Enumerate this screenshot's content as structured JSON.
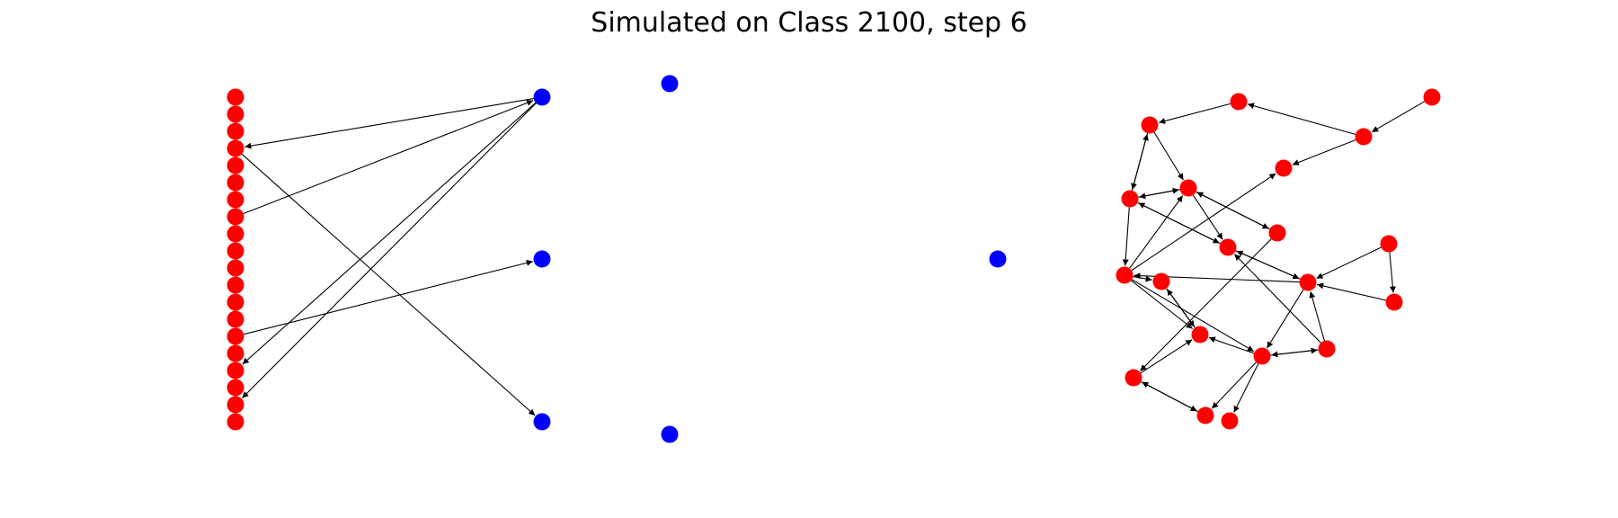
{
  "title": "Simulated on Class 2100, step 6",
  "colors": {
    "red": "#ff0000",
    "blue": "#0000ff",
    "edge": "#000000"
  },
  "graph": {
    "nodes": [
      {
        "id": "L0",
        "color": "red"
      },
      {
        "id": "L1",
        "color": "red"
      },
      {
        "id": "L2",
        "color": "red"
      },
      {
        "id": "L3",
        "color": "red"
      },
      {
        "id": "L4",
        "color": "red"
      },
      {
        "id": "L5",
        "color": "red"
      },
      {
        "id": "L6",
        "color": "red"
      },
      {
        "id": "L7",
        "color": "red"
      },
      {
        "id": "L8",
        "color": "red"
      },
      {
        "id": "L9",
        "color": "red"
      },
      {
        "id": "L10",
        "color": "red"
      },
      {
        "id": "L11",
        "color": "red"
      },
      {
        "id": "L12",
        "color": "red"
      },
      {
        "id": "L13",
        "color": "red"
      },
      {
        "id": "L14",
        "color": "red"
      },
      {
        "id": "L15",
        "color": "red"
      },
      {
        "id": "L16",
        "color": "red"
      },
      {
        "id": "L17",
        "color": "red"
      },
      {
        "id": "L18",
        "color": "red"
      },
      {
        "id": "L19",
        "color": "red"
      },
      {
        "id": "B0",
        "color": "blue"
      },
      {
        "id": "B1",
        "color": "blue"
      },
      {
        "id": "B2",
        "color": "blue"
      },
      {
        "id": "B3",
        "color": "blue"
      },
      {
        "id": "B4",
        "color": "blue"
      },
      {
        "id": "B5",
        "color": "blue"
      },
      {
        "id": "R0",
        "color": "red"
      },
      {
        "id": "R1",
        "color": "red"
      },
      {
        "id": "R2",
        "color": "red"
      },
      {
        "id": "R3",
        "color": "red"
      },
      {
        "id": "R4",
        "color": "red"
      },
      {
        "id": "R5",
        "color": "red"
      },
      {
        "id": "R6",
        "color": "red"
      },
      {
        "id": "R7",
        "color": "red"
      },
      {
        "id": "R8",
        "color": "red"
      },
      {
        "id": "R9",
        "color": "red"
      },
      {
        "id": "R10",
        "color": "red"
      },
      {
        "id": "R11",
        "color": "red"
      },
      {
        "id": "R12",
        "color": "red"
      },
      {
        "id": "R13",
        "color": "red"
      },
      {
        "id": "R14",
        "color": "red"
      },
      {
        "id": "R15",
        "color": "red"
      },
      {
        "id": "R16",
        "color": "red"
      },
      {
        "id": "R17",
        "color": "red"
      },
      {
        "id": "R18",
        "color": "red"
      },
      {
        "id": "R19",
        "color": "red"
      }
    ],
    "edges": [
      {
        "from": "B0",
        "to": "L3"
      },
      {
        "from": "L7",
        "to": "B0"
      },
      {
        "from": "B0",
        "to": "L16"
      },
      {
        "from": "B0",
        "to": "L18"
      },
      {
        "from": "L14",
        "to": "B1"
      },
      {
        "from": "L3",
        "to": "B2"
      },
      {
        "from": "R2",
        "to": "R0"
      },
      {
        "from": "R0",
        "to": "R4"
      },
      {
        "from": "R4",
        "to": "R0"
      },
      {
        "from": "R0",
        "to": "R5"
      },
      {
        "from": "R3",
        "to": "R6"
      },
      {
        "from": "R1",
        "to": "R3"
      },
      {
        "from": "R3",
        "to": "R2"
      },
      {
        "from": "R4",
        "to": "R5"
      },
      {
        "from": "R5",
        "to": "R4"
      },
      {
        "from": "R4",
        "to": "R8"
      },
      {
        "from": "R8",
        "to": "R4"
      },
      {
        "from": "R4",
        "to": "R9"
      },
      {
        "from": "R5",
        "to": "R8"
      },
      {
        "from": "R5",
        "to": "R7"
      },
      {
        "from": "R9",
        "to": "R5"
      },
      {
        "from": "R9",
        "to": "R6"
      },
      {
        "from": "R9",
        "to": "R10"
      },
      {
        "from": "R9",
        "to": "R12"
      },
      {
        "from": "R9",
        "to": "R13"
      },
      {
        "from": "R11",
        "to": "R9"
      },
      {
        "from": "R8",
        "to": "R11"
      },
      {
        "from": "R11",
        "to": "R8"
      },
      {
        "from": "R14",
        "to": "R11"
      },
      {
        "from": "R15",
        "to": "R11"
      },
      {
        "from": "R14",
        "to": "R15"
      },
      {
        "from": "R16",
        "to": "R11"
      },
      {
        "from": "R16",
        "to": "R8"
      },
      {
        "from": "R16",
        "to": "R13"
      },
      {
        "from": "R13",
        "to": "R16"
      },
      {
        "from": "R11",
        "to": "R13"
      },
      {
        "from": "R10",
        "to": "R12"
      },
      {
        "from": "R12",
        "to": "R10"
      },
      {
        "from": "R13",
        "to": "R12"
      },
      {
        "from": "R7",
        "to": "R17"
      },
      {
        "from": "R17",
        "to": "R12"
      },
      {
        "from": "R17",
        "to": "R18"
      },
      {
        "from": "R18",
        "to": "R17"
      },
      {
        "from": "R13",
        "to": "R18"
      },
      {
        "from": "R13",
        "to": "R19"
      },
      {
        "from": "R7",
        "to": "R5"
      }
    ]
  }
}
